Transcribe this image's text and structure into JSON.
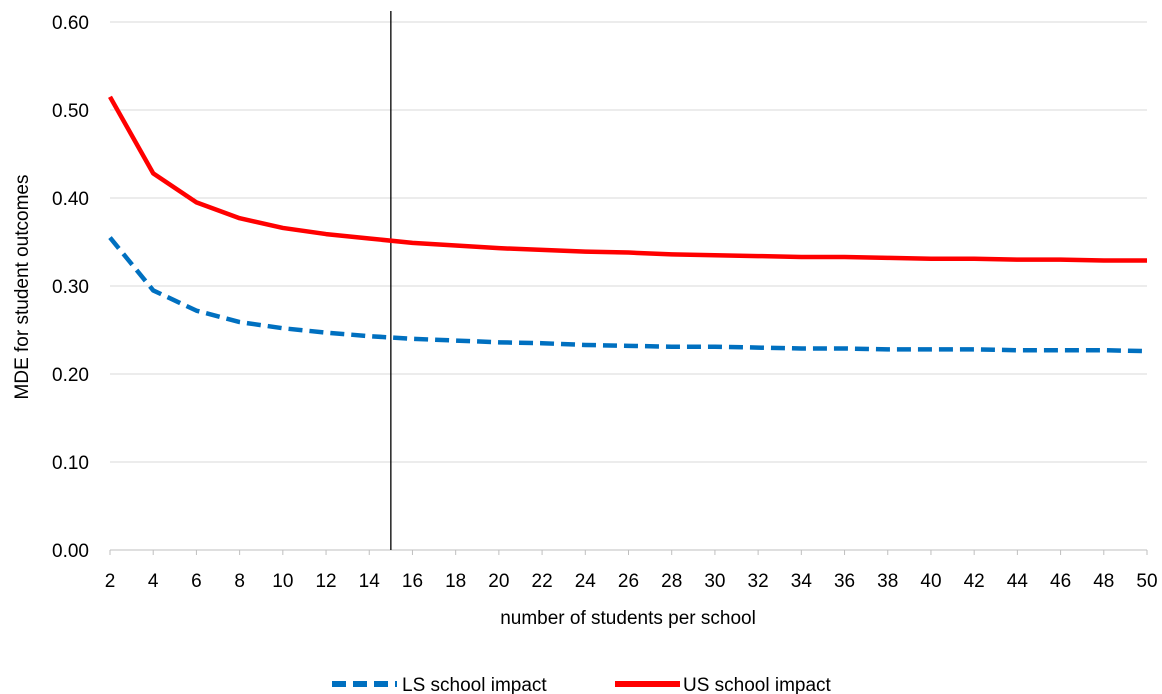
{
  "chart_data": {
    "type": "line",
    "xlabel": "number of students per school",
    "ylabel": "MDE for student outcomes",
    "x": [
      2,
      4,
      6,
      8,
      10,
      12,
      14,
      16,
      18,
      20,
      22,
      24,
      26,
      28,
      30,
      32,
      34,
      36,
      38,
      40,
      42,
      44,
      46,
      48,
      50
    ],
    "x_ticks": [
      "2",
      "4",
      "6",
      "8",
      "10",
      "12",
      "14",
      "16",
      "18",
      "20",
      "22",
      "24",
      "26",
      "28",
      "30",
      "32",
      "34",
      "36",
      "38",
      "40",
      "42",
      "44",
      "46",
      "48",
      "50"
    ],
    "y_ticks": [
      "0.00",
      "0.10",
      "0.20",
      "0.30",
      "0.40",
      "0.50",
      "0.60"
    ],
    "xlim": [
      2,
      50
    ],
    "ylim": [
      0,
      0.6
    ],
    "grid": "horizontal",
    "legend_position": "bottom",
    "reference_line_x": 15,
    "series": [
      {
        "name": "LS school impact",
        "style": "dashed",
        "color": "#0070C0",
        "values": [
          0.355,
          0.295,
          0.272,
          0.259,
          0.252,
          0.247,
          0.243,
          0.24,
          0.238,
          0.236,
          0.235,
          0.233,
          0.232,
          0.231,
          0.231,
          0.23,
          0.229,
          0.229,
          0.228,
          0.228,
          0.228,
          0.227,
          0.227,
          0.227,
          0.226
        ]
      },
      {
        "name": "US school impact",
        "style": "solid",
        "color": "#FF0000",
        "values": [
          0.515,
          0.428,
          0.395,
          0.377,
          0.366,
          0.359,
          0.354,
          0.349,
          0.346,
          0.343,
          0.341,
          0.339,
          0.338,
          0.336,
          0.335,
          0.334,
          0.333,
          0.333,
          0.332,
          0.331,
          0.331,
          0.33,
          0.33,
          0.329,
          0.329
        ]
      }
    ]
  }
}
